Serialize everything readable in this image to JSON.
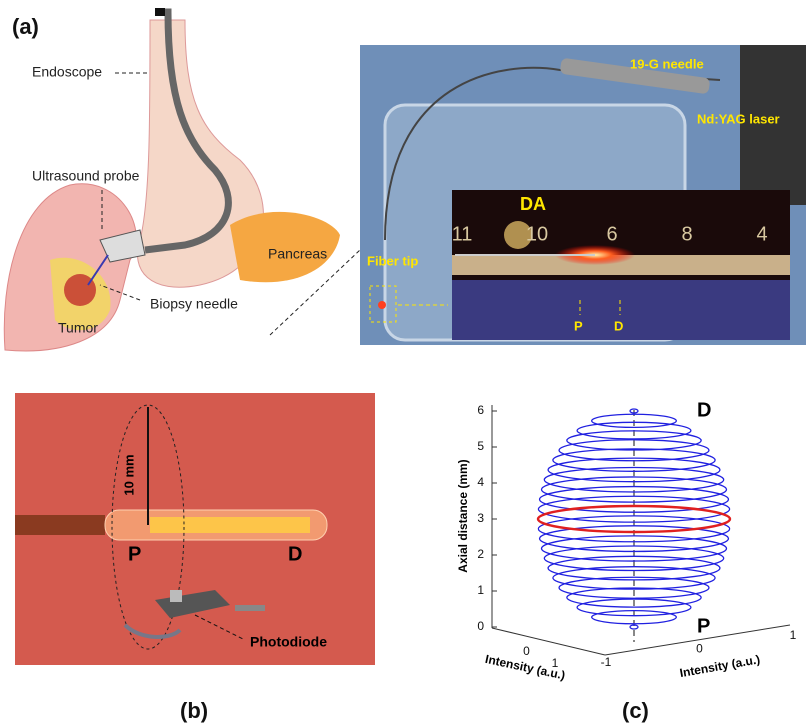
{
  "panel_a": {
    "label": "(a)",
    "annotations": [
      "Endoscope",
      "Ultrasound probe",
      "Pancreas",
      "Tumor",
      "Biopsy needle"
    ],
    "photo_labels": [
      "19-G needle",
      "Nd:YAG laser",
      "DA",
      "Fiber tip",
      "P",
      "D"
    ],
    "ruler_labels": [
      "11",
      "10",
      "6",
      "8",
      "4"
    ]
  },
  "panel_b": {
    "label": "(b)",
    "scale": "10 mm",
    "proximal": "P",
    "distal": "D",
    "detector": "Photodiode"
  },
  "panel_c": {
    "label": "(c)",
    "z_axis_label": "Axial distance (mm)",
    "zticks": [
      0,
      1,
      2,
      3,
      4,
      5,
      6
    ],
    "x_axis_label": "Intensity (a.u.)",
    "xticks": [
      -1,
      0,
      1
    ],
    "y_axis_label": "Intensity (a.u.)",
    "yticks": [
      0,
      1
    ],
    "distal": "D",
    "proximal": "P"
  }
}
